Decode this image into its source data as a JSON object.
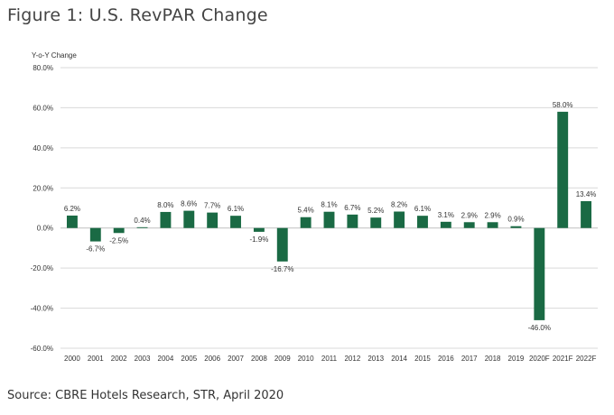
{
  "figure_title": "Figure 1: U.S. RevPAR Change",
  "source": "Source: CBRE Hotels Research, STR, April 2020",
  "colors": {
    "bar": "#1a6a44",
    "gridline": "#d9d9d9",
    "zero_line": "#bfbfbf"
  },
  "chart_data": {
    "type": "bar",
    "title": "",
    "xlabel": "",
    "ylabel": "Y-o-Y Change",
    "ylim": [
      -60,
      80
    ],
    "yticks": [
      80,
      60,
      40,
      20,
      0,
      -20,
      -40,
      -60
    ],
    "ytick_labels": [
      "80.0%",
      "60.0%",
      "40.0%",
      "20.0%",
      "0.0%",
      "-20.0%",
      "-40.0%",
      "-60.0%"
    ],
    "grid": true,
    "categories": [
      "2000",
      "2001",
      "2002",
      "2003",
      "2004",
      "2005",
      "2006",
      "2007",
      "2008",
      "2009",
      "2010",
      "2011",
      "2012",
      "2013",
      "2014",
      "2015",
      "2016",
      "2017",
      "2018",
      "2019",
      "2020F",
      "2021F",
      "2022F"
    ],
    "values": [
      6.2,
      -6.7,
      -2.5,
      0.4,
      8.0,
      8.6,
      7.7,
      6.1,
      -1.9,
      -16.7,
      5.4,
      8.1,
      6.7,
      5.2,
      8.2,
      6.1,
      3.1,
      2.9,
      2.9,
      0.9,
      -46.0,
      58.0,
      13.4
    ],
    "data_labels": [
      "6.2%",
      "-6.7%",
      "-2.5%",
      "0.4%",
      "8.0%",
      "8.6%",
      "7.7%",
      "6.1%",
      "-1.9%",
      "-16.7%",
      "5.4%",
      "8.1%",
      "6.7%",
      "5.2%",
      "8.2%",
      "6.1%",
      "3.1%",
      "2.9%",
      "2.9%",
      "0.9%",
      "-46.0%",
      "58.0%",
      "13.4%"
    ]
  }
}
